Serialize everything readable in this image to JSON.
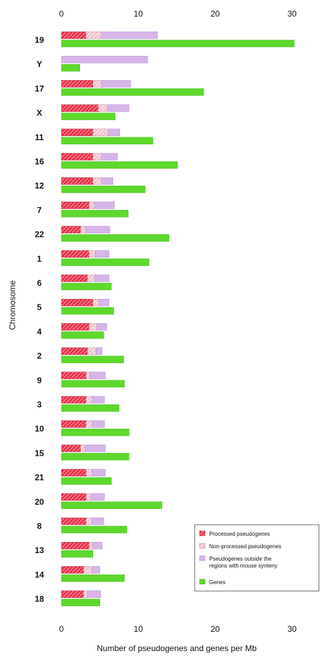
{
  "chart_data": {
    "type": "bar",
    "orientation": "horizontal",
    "stacked_series": [
      "Processed pseudogenes",
      "Non-processed pseudogenes",
      "Pseudogenes outside the regions with mouse synteny"
    ],
    "xlabel": "Number of pseudogenes and genes per Mb",
    "ylabel": "Chromosome",
    "xlim": [
      0,
      30
    ],
    "xticks": [
      "0",
      "10",
      "20",
      "30"
    ],
    "grid": false,
    "legend_position": "bottom-right",
    "categories": [
      "19",
      "Y",
      "17",
      "X",
      "11",
      "16",
      "12",
      "7",
      "22",
      "1",
      "6",
      "5",
      "4",
      "2",
      "9",
      "3",
      "10",
      "15",
      "21",
      "20",
      "8",
      "13",
      "14",
      "18"
    ],
    "series": [
      {
        "name": "Processed pseudogenes",
        "color": "#e8304a",
        "pattern": "hatched",
        "values": [
          3.2,
          0,
          4.1,
          4.8,
          4.1,
          4.1,
          4.1,
          3.6,
          2.5,
          3.6,
          3.4,
          4.1,
          3.6,
          3.4,
          3.2,
          3.2,
          3.2,
          2.5,
          3.2,
          3.2,
          3.2,
          3.6,
          2.9,
          2.9
        ]
      },
      {
        "name": "Non-processed pseudogenes",
        "color": "#f2c4d0",
        "pattern": "hatched",
        "values": [
          2.0,
          0,
          1.1,
          1.2,
          2.0,
          1.1,
          1.1,
          0.7,
          0.7,
          0.8,
          0.9,
          0.8,
          1.0,
          1.1,
          0.5,
          0.8,
          0.8,
          0.6,
          0.8,
          0.6,
          0.8,
          0.5,
          1.1,
          0.5
        ]
      },
      {
        "name": "Pseudogenes outside the regions with mouse synteny",
        "color": "#d7b5ea",
        "pattern": "solid",
        "values": [
          7.3,
          11.2,
          3.8,
          2.8,
          1.5,
          2.1,
          1.5,
          2.6,
          3.1,
          1.8,
          1.9,
          1.3,
          1.3,
          0.8,
          2.0,
          1.6,
          1.6,
          2.6,
          1.7,
          1.8,
          1.5,
          1.2,
          1.0,
          1.7
        ]
      },
      {
        "name": "Genes",
        "color": "#5ed82c",
        "pattern": "solid",
        "values": [
          30.3,
          2.4,
          18.5,
          7.0,
          11.9,
          15.1,
          10.9,
          8.7,
          14.0,
          11.4,
          6.5,
          6.8,
          5.5,
          8.1,
          8.2,
          7.5,
          8.8,
          8.8,
          6.5,
          13.1,
          8.5,
          4.1,
          8.2,
          5.0
        ]
      }
    ]
  }
}
